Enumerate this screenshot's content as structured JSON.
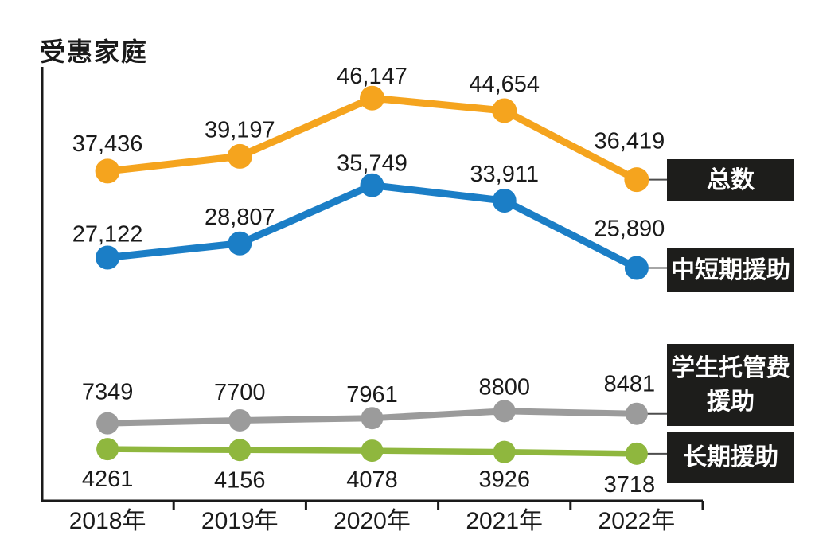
{
  "page": {
    "background": "#ffffff"
  },
  "chart_data": {
    "type": "line",
    "title": "受惠家庭",
    "categories": [
      "2018年",
      "2019年",
      "2020年",
      "2021年",
      "2022年"
    ],
    "series": [
      {
        "name": "total",
        "legend": "总数",
        "color": "#F5A41E",
        "values": [
          37436,
          39197,
          46147,
          44654,
          36419
        ],
        "labels": [
          "37,436",
          "39,197",
          "46,147",
          "44,654",
          "36,419"
        ],
        "label_side": "above",
        "label_dy": [
          -25,
          -24,
          -18,
          -24,
          -39
        ]
      },
      {
        "name": "mid-short-term-aid",
        "legend": "中短期援助",
        "color": "#1B7EC6",
        "values": [
          27122,
          28807,
          35749,
          33911,
          25890
        ],
        "labels": [
          "27,122",
          "28,807",
          "35,749",
          "33,911",
          "25,890"
        ],
        "label_side": "above",
        "label_dy": [
          -20,
          -24,
          -18,
          -24,
          -40
        ]
      },
      {
        "name": "student-care-fee-aid",
        "legend": "学生托管费\n援助",
        "color": "#9B9B9B",
        "values": [
          7349,
          7700,
          7961,
          8800,
          8481
        ],
        "labels": [
          "7349",
          "7700",
          "7961",
          "8800",
          "8481"
        ],
        "label_side": "above",
        "label_dy": [
          -30,
          -26,
          -20,
          -21,
          -28
        ]
      },
      {
        "name": "long-term-aid",
        "legend": "长期援助",
        "color": "#8FB73E",
        "values": [
          4261,
          4156,
          4078,
          3926,
          3718
        ],
        "labels": [
          "4261",
          "4156",
          "4078",
          "3926",
          "3718"
        ],
        "label_side": "below",
        "label_dy": [
          47,
          47,
          46,
          44,
          48
        ]
      }
    ],
    "label_dx": [
      0,
      0,
      0,
      0,
      -9
    ],
    "xlabel": "",
    "ylabel": "",
    "ylim": [
      0,
      57855
    ],
    "grid": false,
    "legend_position": "right",
    "axis_color": "#1a1a1a",
    "text_color": "#1a1a1a",
    "connector_color": "#4d4d4d",
    "legend_bg": "#1d1d1b",
    "legend_text_color": "#ffffff"
  }
}
